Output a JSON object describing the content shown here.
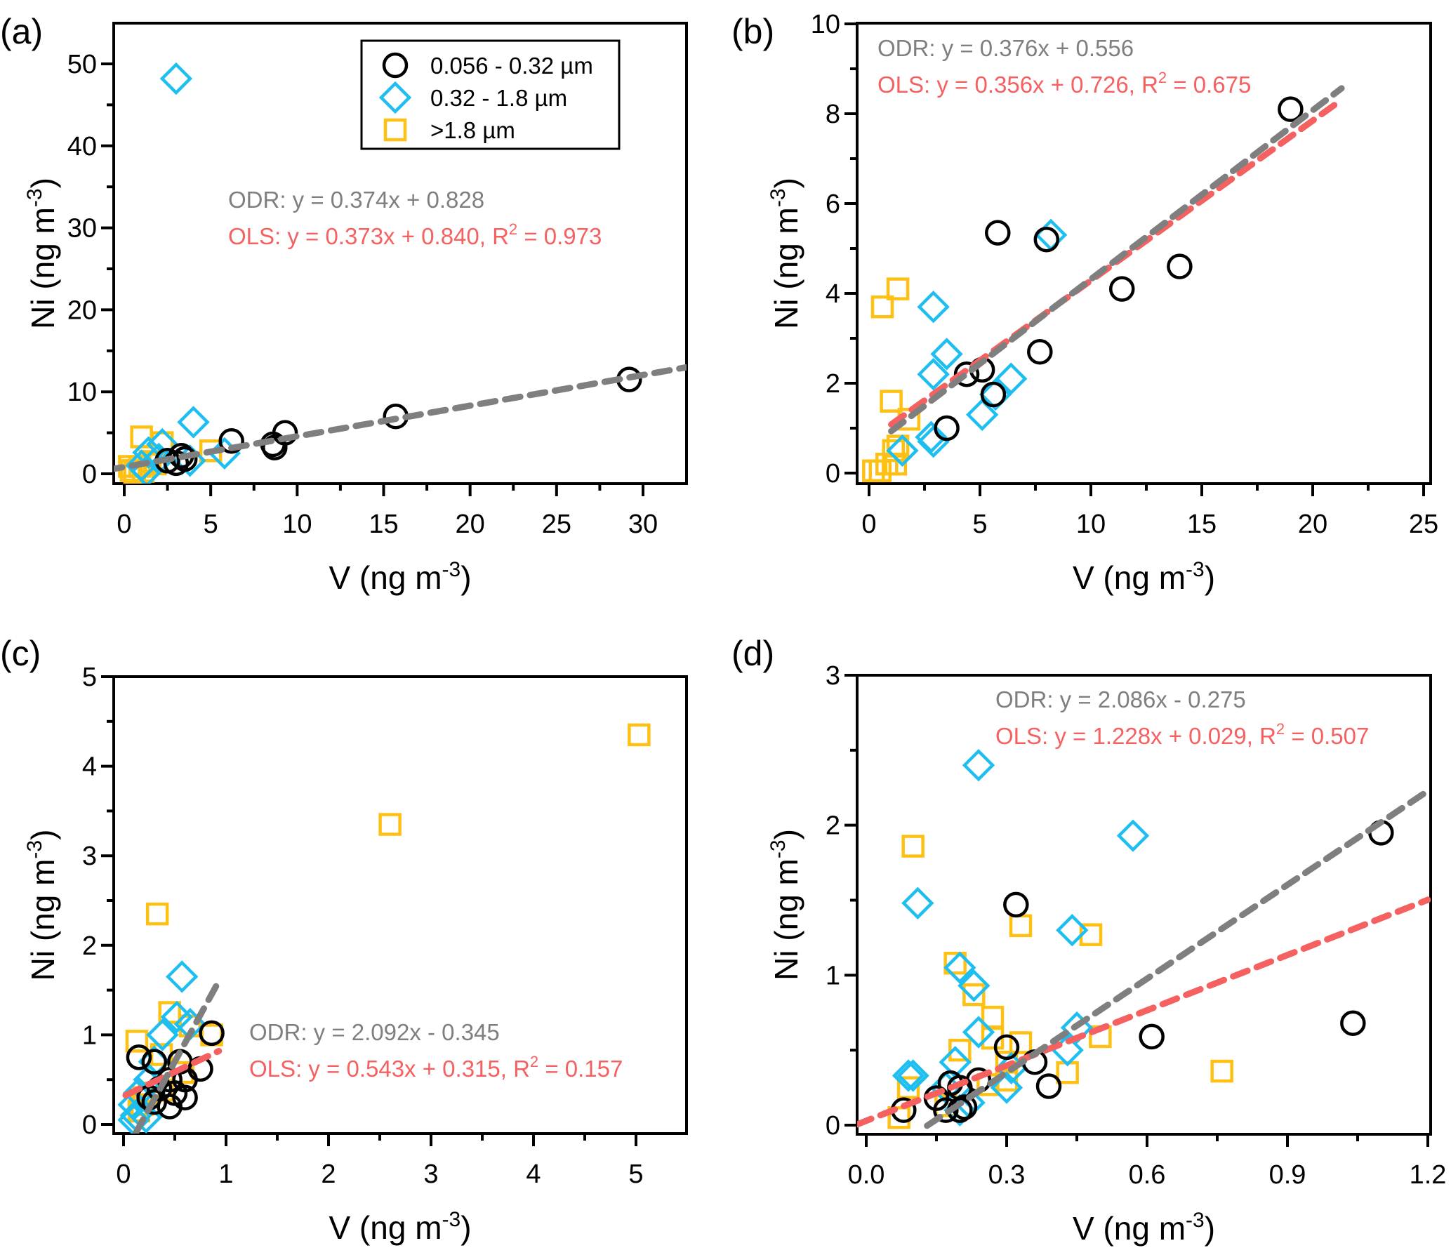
{
  "colors": {
    "circle": "#000000",
    "diamond": "#1EBFF0",
    "square": "#FFC014",
    "odr_line": "#7F7F7F",
    "ols_line": "#F56060"
  },
  "legend": {
    "entries": [
      {
        "marker": "circle",
        "label": "0.056 - 0.32 µm"
      },
      {
        "marker": "diamond",
        "label": "0.32 - 1.8 µm"
      },
      {
        "marker": "square",
        "label": ">1.8 µm"
      }
    ],
    "placement": "top-right of panel (a)"
  },
  "chart_data": [
    {
      "type": "scatter",
      "panel": "(a)",
      "title": "",
      "xlabel": "V (ng m-3)",
      "ylabel": "Ni (ng m-3)",
      "xlim": [
        -1,
        32.5
      ],
      "ylim": [
        -2,
        55
      ],
      "xticks": [
        0,
        5,
        10,
        15,
        20,
        25,
        30
      ],
      "yticks": [
        0,
        10,
        20,
        30,
        40,
        50
      ],
      "odr_text": "ODR: y = 0.374x + 0.828",
      "ols_text": "OLS: y = 0.373x + 0.840, R",
      "ols_r2_text": " = 0.973",
      "odr": {
        "slope": 0.374,
        "intercept": 0.828,
        "x_range": [
          -1,
          32.5
        ]
      },
      "ols": null,
      "series": [
        {
          "name": "0.056 - 0.32 µm",
          "marker": "circle",
          "points": [
            [
              29.2,
              11.5
            ],
            [
              15.7,
              7.0
            ],
            [
              9.3,
              5.0
            ],
            [
              8.6,
              3.6
            ],
            [
              8.7,
              3.2
            ],
            [
              6.2,
              4.0
            ],
            [
              3.5,
              1.8
            ],
            [
              3.0,
              1.3
            ],
            [
              3.3,
              2.2
            ],
            [
              2.5,
              1.6
            ]
          ]
        },
        {
          "name": "0.32 - 1.8 µm",
          "marker": "diamond",
          "points": [
            [
              3.0,
              48.2
            ],
            [
              4.0,
              6.3
            ],
            [
              5.8,
              2.5
            ],
            [
              3.8,
              1.6
            ],
            [
              2.2,
              3.6
            ],
            [
              1.4,
              2.6
            ],
            [
              1.0,
              1.0
            ],
            [
              1.3,
              0.3
            ],
            [
              2.0,
              1.8
            ]
          ]
        },
        {
          "name": ">1.8 µm",
          "marker": "square",
          "points": [
            [
              1.0,
              4.5
            ],
            [
              2.2,
              3.8
            ],
            [
              5.0,
              2.8
            ],
            [
              1.5,
              1.5
            ],
            [
              0.9,
              0.9
            ],
            [
              0.4,
              0.4
            ],
            [
              0.6,
              0.1
            ],
            [
              1.1,
              0.3
            ],
            [
              0.3,
              0.9
            ],
            [
              1.8,
              1.2
            ]
          ]
        }
      ]
    },
    {
      "type": "scatter",
      "panel": "(b)",
      "title": "",
      "xlabel": "V (ng m-3)",
      "ylabel": "Ni (ng m-3)",
      "xlim": [
        -0.5,
        25
      ],
      "ylim": [
        -0.3,
        10
      ],
      "xticks": [
        0,
        5,
        10,
        15,
        20,
        25
      ],
      "yticks": [
        0,
        2,
        4,
        6,
        8,
        10
      ],
      "odr_text": "ODR: y = 0.376x + 0.556",
      "ols_text": "OLS: y = 0.356x + 0.726, R",
      "ols_r2_text": " = 0.675",
      "odr": {
        "slope": 0.376,
        "intercept": 0.556,
        "x_range": [
          1.0,
          21.3
        ]
      },
      "ols": {
        "slope": 0.356,
        "intercept": 0.726,
        "x_range": [
          1.0,
          21.3
        ]
      },
      "series": [
        {
          "name": "0.056 - 0.32 µm",
          "marker": "circle",
          "points": [
            [
              19.0,
              8.1
            ],
            [
              14.0,
              4.6
            ],
            [
              11.4,
              4.1
            ],
            [
              8.0,
              5.2
            ],
            [
              5.8,
              5.35
            ],
            [
              7.7,
              2.7
            ],
            [
              5.1,
              2.3
            ],
            [
              4.4,
              2.2
            ],
            [
              5.6,
              1.75
            ],
            [
              3.5,
              1.0
            ]
          ]
        },
        {
          "name": "0.32 - 1.8 µm",
          "marker": "diamond",
          "points": [
            [
              8.2,
              5.3
            ],
            [
              2.9,
              3.7
            ],
            [
              3.5,
              2.65
            ],
            [
              2.9,
              2.2
            ],
            [
              6.4,
              2.1
            ],
            [
              5.7,
              1.75
            ],
            [
              5.1,
              1.3
            ],
            [
              2.8,
              0.8
            ],
            [
              2.9,
              0.7
            ],
            [
              1.5,
              0.5
            ]
          ]
        },
        {
          "name": ">1.8 µm",
          "marker": "square",
          "points": [
            [
              0.6,
              3.7
            ],
            [
              1.3,
              4.1
            ],
            [
              1.0,
              1.6
            ],
            [
              1.8,
              1.2
            ],
            [
              1.1,
              0.5
            ],
            [
              1.3,
              0.6
            ],
            [
              1.2,
              0.2
            ],
            [
              0.8,
              0.2
            ],
            [
              0.2,
              0.05
            ],
            [
              0.5,
              0.05
            ]
          ]
        }
      ]
    },
    {
      "type": "scatter",
      "panel": "(c)",
      "title": "",
      "xlabel": "V (ng m-3)",
      "ylabel": "Ni (ng m-3)",
      "xlim": [
        -0.1,
        5.5
      ],
      "ylim": [
        -0.1,
        5
      ],
      "xticks": [
        0,
        1,
        2,
        3,
        4,
        5
      ],
      "yticks": [
        0,
        1,
        2,
        3,
        4,
        5
      ],
      "odr_text": "ODR: y = 2.092x - 0.345",
      "ols_text": "OLS: y = 0.543x + 0.315, R",
      "ols_r2_text": " = 0.157",
      "odr": {
        "slope": 2.092,
        "intercept": -0.345,
        "x_range": [
          0.12,
          0.93
        ]
      },
      "ols": {
        "slope": 0.543,
        "intercept": 0.315,
        "x_range": [
          0.02,
          0.93
        ]
      },
      "series": [
        {
          "name": "0.056 - 0.32 µm",
          "marker": "circle",
          "points": [
            [
              0.86,
              1.02
            ],
            [
              0.75,
              0.62
            ],
            [
              0.6,
              0.5
            ],
            [
              0.55,
              0.7
            ],
            [
              0.45,
              0.5
            ],
            [
              0.3,
              0.7
            ],
            [
              0.15,
              0.75
            ],
            [
              0.35,
              0.4
            ],
            [
              0.5,
              0.35
            ],
            [
              0.45,
              0.2
            ],
            [
              0.3,
              0.25
            ],
            [
              0.25,
              0.3
            ],
            [
              0.6,
              0.3
            ]
          ]
        },
        {
          "name": "0.32 - 1.8 µm",
          "marker": "diamond",
          "points": [
            [
              0.57,
              1.65
            ],
            [
              0.65,
              1.12
            ],
            [
              0.52,
              1.2
            ],
            [
              0.38,
              1.0
            ],
            [
              0.3,
              0.7
            ],
            [
              0.25,
              0.5
            ],
            [
              0.15,
              0.35
            ],
            [
              0.1,
              0.22
            ],
            [
              0.12,
              0.1
            ],
            [
              0.22,
              0.08
            ],
            [
              0.1,
              0.05
            ]
          ]
        },
        {
          "name": ">1.8 µm",
          "marker": "square",
          "points": [
            [
              5.03,
              4.35
            ],
            [
              2.6,
              3.35
            ],
            [
              0.33,
              2.35
            ],
            [
              0.45,
              1.25
            ],
            [
              0.65,
              1.1
            ],
            [
              0.86,
              1.0
            ],
            [
              0.13,
              0.93
            ],
            [
              0.37,
              0.78
            ],
            [
              0.58,
              0.58
            ],
            [
              0.38,
              0.38
            ],
            [
              0.25,
              0.35
            ],
            [
              0.18,
              0.22
            ],
            [
              0.15,
              0.15
            ],
            [
              0.2,
              0.3
            ]
          ]
        }
      ]
    },
    {
      "type": "scatter",
      "panel": "(d)",
      "title": "",
      "xlabel": "V (ng m-3)",
      "ylabel": "Ni (ng m-3)",
      "xlim": [
        -0.02,
        1.2
      ],
      "ylim": [
        -0.06,
        3
      ],
      "xticks": [
        0.0,
        0.3,
        0.6,
        0.9,
        1.2
      ],
      "yticks": [
        0,
        1,
        2,
        3
      ],
      "odr_text": "ODR: y = 2.086x - 0.275",
      "ols_text": "OLS: y = 1.228x + 0.029, R",
      "ols_r2_text": " = 0.507",
      "odr": {
        "slope": 2.086,
        "intercept": -0.275,
        "x_range": [
          0.13,
          1.2
        ]
      },
      "ols": {
        "slope": 1.228,
        "intercept": 0.029,
        "x_range": [
          -0.02,
          1.2
        ]
      },
      "series": [
        {
          "name": "0.056 - 0.32 µm",
          "marker": "circle",
          "points": [
            [
              1.1,
              1.95
            ],
            [
              1.04,
              0.68
            ],
            [
              0.61,
              0.59
            ],
            [
              0.32,
              1.47
            ],
            [
              0.36,
              0.42
            ],
            [
              0.39,
              0.26
            ],
            [
              0.3,
              0.52
            ],
            [
              0.24,
              0.3
            ],
            [
              0.2,
              0.25
            ],
            [
              0.18,
              0.28
            ],
            [
              0.15,
              0.18
            ],
            [
              0.17,
              0.1
            ],
            [
              0.2,
              0.1
            ],
            [
              0.08,
              0.1
            ],
            [
              0.21,
              0.12
            ]
          ]
        },
        {
          "name": "0.32 - 1.8 µm",
          "marker": "diamond",
          "points": [
            [
              0.24,
              2.4
            ],
            [
              0.57,
              1.93
            ],
            [
              0.11,
              1.48
            ],
            [
              0.44,
              1.3
            ],
            [
              0.2,
              1.05
            ],
            [
              0.23,
              0.93
            ],
            [
              0.24,
              0.62
            ],
            [
              0.45,
              0.65
            ],
            [
              0.43,
              0.5
            ],
            [
              0.19,
              0.42
            ],
            [
              0.1,
              0.33
            ],
            [
              0.09,
              0.33
            ],
            [
              0.31,
              0.38
            ],
            [
              0.3,
              0.25
            ],
            [
              0.17,
              0.25
            ],
            [
              0.2,
              0.1
            ],
            [
              0.22,
              0.15
            ]
          ]
        },
        {
          "name": ">1.8 µm",
          "marker": "square",
          "points": [
            [
              0.1,
              1.86
            ],
            [
              0.33,
              1.33
            ],
            [
              0.48,
              1.27
            ],
            [
              0.19,
              1.08
            ],
            [
              0.23,
              0.87
            ],
            [
              0.27,
              0.72
            ],
            [
              0.27,
              0.58
            ],
            [
              0.33,
              0.55
            ],
            [
              0.5,
              0.59
            ],
            [
              0.2,
              0.5
            ],
            [
              0.3,
              0.42
            ],
            [
              0.43,
              0.35
            ],
            [
              0.76,
              0.36
            ],
            [
              0.3,
              0.3
            ],
            [
              0.26,
              0.27
            ],
            [
              0.09,
              0.25
            ],
            [
              0.17,
              0.13
            ],
            [
              0.07,
              0.05
            ]
          ]
        }
      ]
    }
  ]
}
